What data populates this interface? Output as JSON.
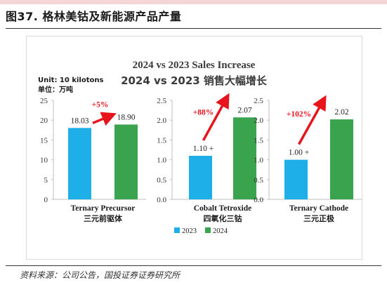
{
  "figure": {
    "title": "图37. 格林美钴及新能源产品产量",
    "source": "资料来源：公司公告，国投证券证券研究所"
  },
  "chart_data": {
    "type": "bar",
    "title": "2024 vs 2023 Sales Increase",
    "subtitle": "2024 vs 2023 销售大幅增长",
    "legend_position": "bottom",
    "series": [
      {
        "name": "2023",
        "color": "#1eaee8"
      },
      {
        "name": "2024",
        "color": "#3aa34d"
      }
    ],
    "panels": [
      {
        "unit_label": "Unit: 10 kilotons",
        "unit_label_cn": "单位：万吨",
        "ylim": [
          0,
          25
        ],
        "yticks": [
          "0",
          "5",
          "10",
          "15",
          "20",
          "25"
        ],
        "category": "Ternary Precursor",
        "category_cn": "三元前驱体",
        "values": [
          18.03,
          18.9
        ],
        "value_labels": [
          "18.03",
          "18.90"
        ],
        "growth": "+5%"
      },
      {
        "ylim": [
          0,
          2.5
        ],
        "yticks": [
          "0.0",
          "0.5",
          "1.0",
          "1.5",
          "2.0",
          "2.5"
        ],
        "category": "Cobalt Tetroxide",
        "category_cn": "四氧化三钴",
        "values": [
          1.1,
          2.07
        ],
        "value_labels": [
          "1.10 +",
          "2.07"
        ],
        "growth": "+88%"
      },
      {
        "ylim": [
          0,
          2.5
        ],
        "yticks": [
          "0.0",
          "0.5",
          "1.0",
          "1.5",
          "2.0",
          "2.5"
        ],
        "category": "Ternary Cathode",
        "category_cn": "三元正极",
        "values": [
          1.0,
          2.02
        ],
        "value_labels": [
          "1.00 +",
          "2.02"
        ],
        "growth": "+102%"
      }
    ],
    "arrow_color": "#e8141c",
    "growth_color": "#e8141c"
  }
}
